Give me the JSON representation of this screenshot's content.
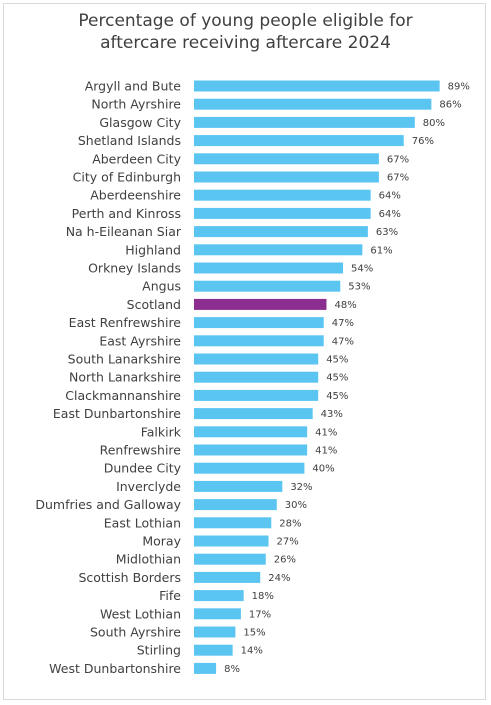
{
  "chart_data": {
    "type": "bar",
    "orientation": "horizontal",
    "title_line1": "Percentage of young people eligible for",
    "title_line2": "aftercare receiving aftercare 2024",
    "xlabel": "",
    "ylabel": "",
    "xlim": [
      0,
      100
    ],
    "grid": false,
    "legend": "none",
    "value_suffix": "%",
    "bar_color": "#5bc5f2",
    "highlight_color": "#8b2e8f",
    "highlight_category": "Scotland",
    "categories": [
      "Argyll and Bute",
      "North Ayrshire",
      "Glasgow City",
      "Shetland Islands",
      "Aberdeen City",
      "City of Edinburgh",
      "Aberdeenshire",
      "Perth and Kinross",
      "Na h-Eileanan Siar",
      "Highland",
      "Orkney Islands",
      "Angus",
      "Scotland",
      "East Renfrewshire",
      "East Ayrshire",
      "South Lanarkshire",
      "North Lanarkshire",
      "Clackmannanshire",
      "East Dunbartonshire",
      "Falkirk",
      "Renfrewshire",
      "Dundee City",
      "Inverclyde",
      "Dumfries and Galloway",
      "East Lothian",
      "Moray",
      "Midlothian",
      "Scottish Borders",
      "Fife",
      "West Lothian",
      "South Ayrshire",
      "Stirling",
      "West Dunbartonshire"
    ],
    "values": [
      89,
      86,
      80,
      76,
      67,
      67,
      64,
      64,
      63,
      61,
      54,
      53,
      48,
      47,
      47,
      45,
      45,
      45,
      43,
      41,
      41,
      40,
      32,
      30,
      28,
      27,
      26,
      24,
      18,
      17,
      15,
      14,
      8
    ]
  }
}
